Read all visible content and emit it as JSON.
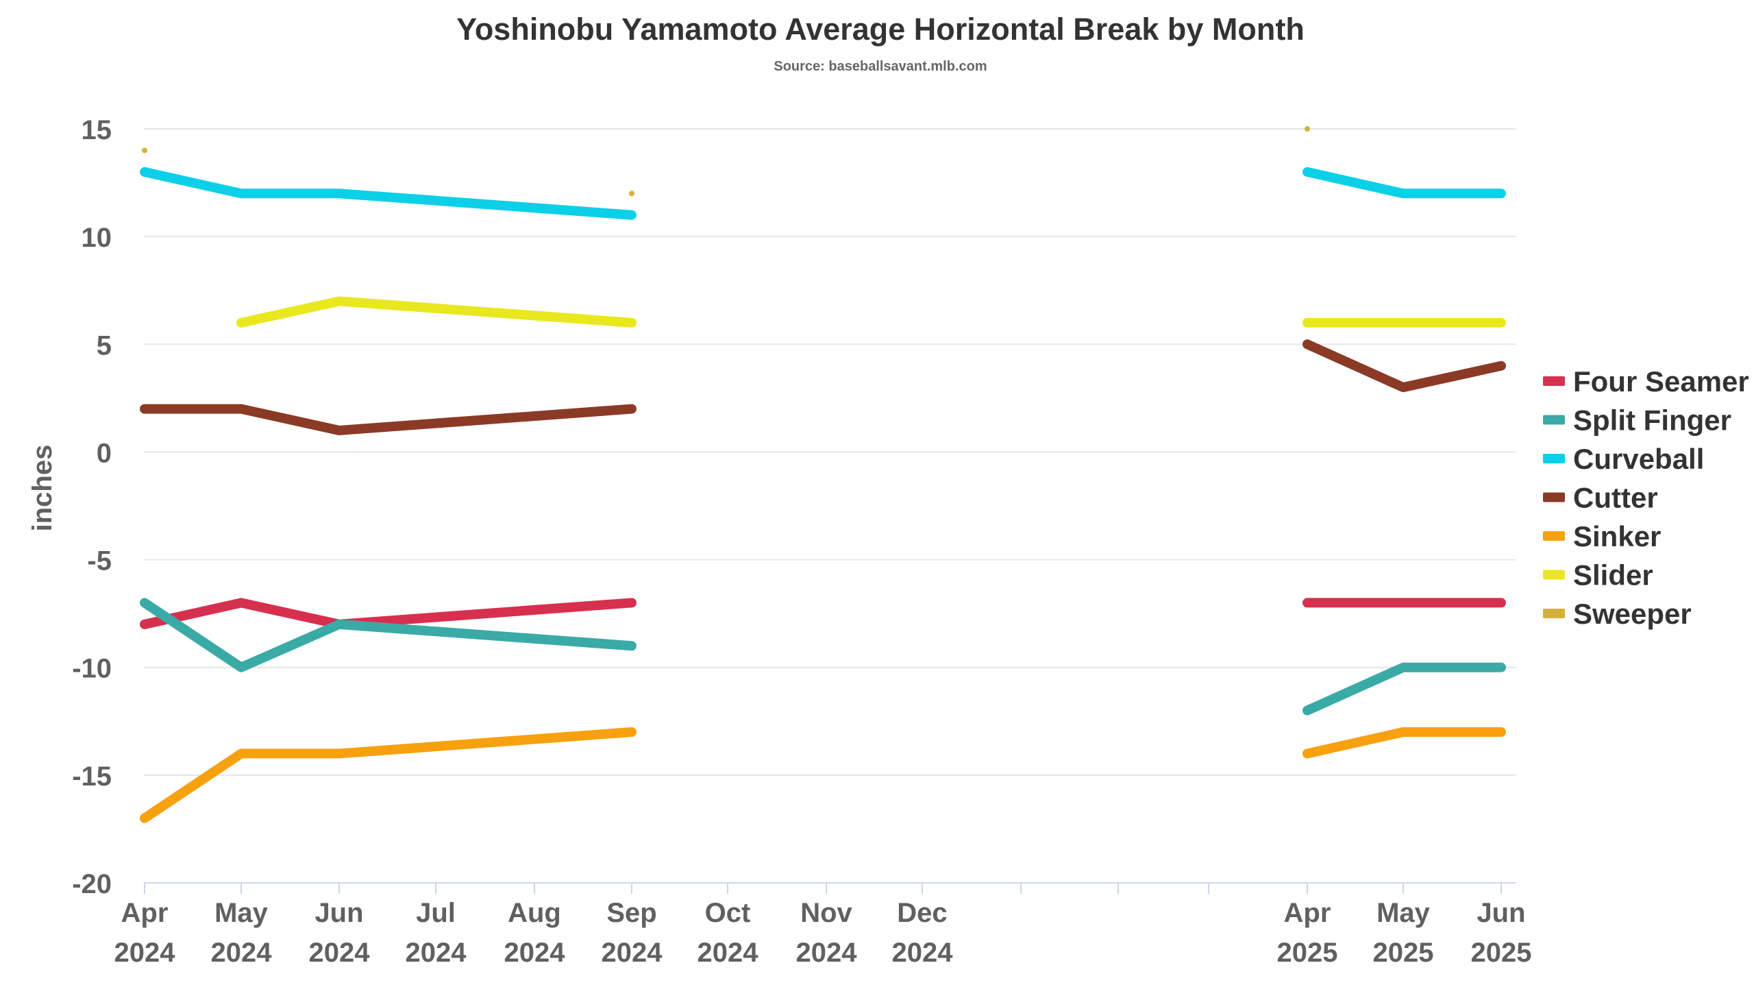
{
  "chart_data": {
    "type": "line",
    "title": "Yoshinobu Yamamoto Average Horizontal Break by Month",
    "subtitle": "Source: baseballsavant.mlb.com",
    "ylabel": "inches",
    "ylim": [
      -20,
      15
    ],
    "yticks": [
      15,
      10,
      5,
      0,
      -5,
      -10,
      -15,
      -20
    ],
    "grid": true,
    "legend_position": "right",
    "x_months": [
      "2024-04",
      "2024-05",
      "2024-06",
      "2024-07",
      "2024-08",
      "2024-09",
      "2024-10",
      "2024-11",
      "2024-12",
      "2025-01",
      "2025-02",
      "2025-03",
      "2025-04",
      "2025-05",
      "2025-06"
    ],
    "x_tick_labels": [
      [
        "Apr",
        "2024"
      ],
      [
        "May",
        "2024"
      ],
      [
        "Jun",
        "2024"
      ],
      [
        "Jul",
        "2024"
      ],
      [
        "Aug",
        "2024"
      ],
      [
        "Sep",
        "2024"
      ],
      [
        "Oct",
        "2024"
      ],
      [
        "Nov",
        "2024"
      ],
      [
        "Dec",
        "2024"
      ],
      [
        "",
        ""
      ],
      [
        "",
        ""
      ],
      [
        "",
        ""
      ],
      [
        "Apr",
        "2025"
      ],
      [
        "May",
        "2025"
      ],
      [
        "Jun",
        "2025"
      ]
    ],
    "series": [
      {
        "name": "Four Seamer",
        "color": "#d7304f",
        "points": [
          [
            "2024-04",
            -8
          ],
          [
            "2024-05",
            -7
          ],
          [
            "2024-06",
            -8
          ],
          [
            "2024-09",
            -7
          ],
          null,
          [
            "2025-04",
            -7
          ],
          [
            "2025-05",
            -7
          ],
          [
            "2025-06",
            -7
          ]
        ]
      },
      {
        "name": "Split Finger",
        "color": "#3aaaa7",
        "points": [
          [
            "2024-04",
            -7
          ],
          [
            "2024-05",
            -10
          ],
          [
            "2024-06",
            -8
          ],
          [
            "2024-09",
            -9
          ],
          null,
          [
            "2025-04",
            -12
          ],
          [
            "2025-05",
            -10
          ],
          [
            "2025-06",
            -10
          ]
        ]
      },
      {
        "name": "Curveball",
        "color": "#0cd0e8",
        "points": [
          [
            "2024-04",
            13
          ],
          [
            "2024-05",
            12
          ],
          [
            "2024-06",
            12
          ],
          [
            "2024-09",
            11
          ],
          null,
          [
            "2025-04",
            13
          ],
          [
            "2025-05",
            12
          ],
          [
            "2025-06",
            12
          ]
        ]
      },
      {
        "name": "Cutter",
        "color": "#8b3a26",
        "points": [
          [
            "2024-04",
            2
          ],
          [
            "2024-05",
            2
          ],
          [
            "2024-06",
            1
          ],
          [
            "2024-09",
            2
          ],
          null,
          [
            "2025-04",
            5
          ],
          [
            "2025-05",
            3
          ],
          [
            "2025-06",
            4
          ]
        ]
      },
      {
        "name": "Sinker",
        "color": "#f7a10f",
        "points": [
          [
            "2024-04",
            -17
          ],
          [
            "2024-05",
            -14
          ],
          [
            "2024-06",
            -14
          ],
          [
            "2024-09",
            -13
          ],
          null,
          [
            "2025-04",
            -14
          ],
          [
            "2025-05",
            -13
          ],
          [
            "2025-06",
            -13
          ]
        ]
      },
      {
        "name": "Slider",
        "color": "#e9e81f",
        "points": [
          [
            "2024-05",
            6
          ],
          [
            "2024-06",
            7
          ],
          [
            "2024-09",
            6
          ],
          null,
          [
            "2025-04",
            6
          ],
          [
            "2025-05",
            6
          ],
          [
            "2025-06",
            6
          ]
        ]
      },
      {
        "name": "Sweeper",
        "color": "#d4b13a",
        "marker_only": true,
        "points": [
          [
            "2024-04",
            14
          ],
          [
            "2024-09",
            12
          ],
          [
            "2025-04",
            15
          ]
        ]
      }
    ]
  }
}
